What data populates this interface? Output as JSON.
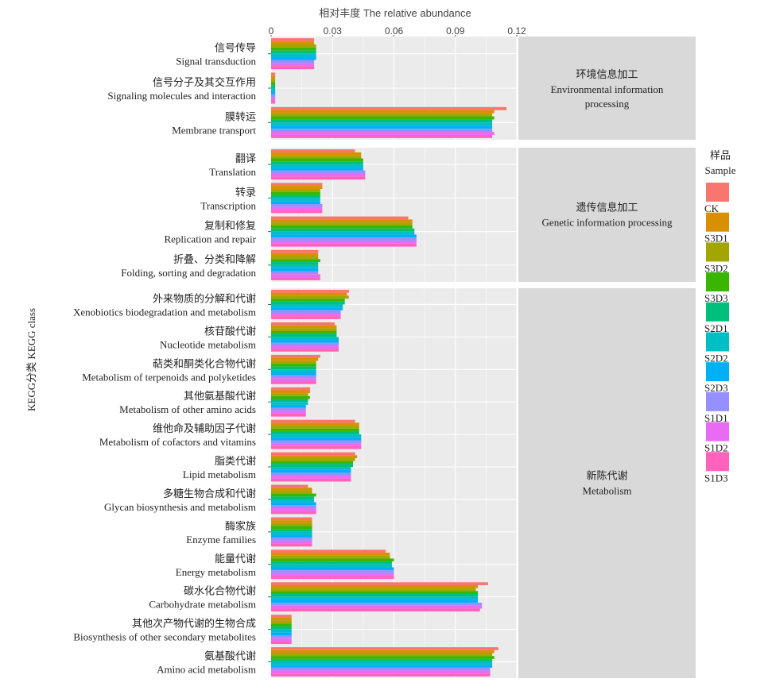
{
  "chart_data": {
    "type": "bar",
    "orientation": "horizontal",
    "title": "相对丰度 The relative abundance",
    "ylabel": "KEGG分类 KEGG class",
    "xlim": [
      0,
      0.12
    ],
    "xticks": [
      "0",
      "0.03",
      "0.06",
      "0.09",
      "0.12"
    ],
    "grid": true,
    "legend": {
      "title_cn": "样品",
      "title_en": "Sample",
      "position": "right"
    },
    "samples": [
      "CK",
      "S3D1",
      "S3D2",
      "S3D3",
      "S2D1",
      "S2D2",
      "S2D3",
      "S1D1",
      "S1D2",
      "S1D3"
    ],
    "colors": [
      "#F8766D",
      "#D89000",
      "#A3A500",
      "#39B600",
      "#00BF7D",
      "#00BFC4",
      "#00B0F6",
      "#9590FF",
      "#E76BF3",
      "#FF62BC"
    ],
    "panels": [
      {
        "label_cn": "环境信息加工",
        "label_en": "Environmental information processing",
        "categories": [
          {
            "cn": "信号传导",
            "en": "Signal transduction",
            "values": [
              0.021,
              0.021,
              0.022,
              0.022,
              0.022,
              0.022,
              0.022,
              0.021,
              0.021,
              0.021
            ]
          },
          {
            "cn": "信号分子及其交互作用",
            "en": "Signaling molecules and interaction",
            "values": [
              0.002,
              0.002,
              0.002,
              0.002,
              0.002,
              0.002,
              0.002,
              0.002,
              0.002,
              0.002
            ]
          },
          {
            "cn": "膜转运",
            "en": "Membrane transport",
            "values": [
              0.115,
              0.109,
              0.108,
              0.109,
              0.108,
              0.108,
              0.108,
              0.108,
              0.109,
              0.108
            ]
          }
        ]
      },
      {
        "label_cn": "遗传信息加工",
        "label_en": "Genetic information processing",
        "categories": [
          {
            "cn": "翻译",
            "en": "Translation",
            "values": [
              0.041,
              0.044,
              0.044,
              0.045,
              0.045,
              0.045,
              0.045,
              0.046,
              0.046,
              0.046
            ]
          },
          {
            "cn": "转录",
            "en": "Transcription",
            "values": [
              0.025,
              0.025,
              0.024,
              0.024,
              0.024,
              0.024,
              0.024,
              0.025,
              0.025,
              0.025
            ]
          },
          {
            "cn": "复制和修复",
            "en": "Replication and repair",
            "values": [
              0.067,
              0.069,
              0.069,
              0.069,
              0.07,
              0.07,
              0.071,
              0.071,
              0.071,
              0.071
            ]
          },
          {
            "cn": "折叠、分类和降解",
            "en": "Folding, sorting and degradation",
            "values": [
              0.023,
              0.023,
              0.023,
              0.024,
              0.023,
              0.023,
              0.023,
              0.023,
              0.024,
              0.024
            ]
          }
        ]
      },
      {
        "label_cn": "新陈代谢",
        "label_en": "Metabolism",
        "categories": [
          {
            "cn": "外来物质的分解和代谢",
            "en": "Xenobiotics biodegradation and metabolism",
            "values": [
              0.038,
              0.037,
              0.038,
              0.036,
              0.036,
              0.035,
              0.035,
              0.034,
              0.034,
              0.034
            ]
          },
          {
            "cn": "核苷酸代谢",
            "en": "Nucleotide metabolism",
            "values": [
              0.031,
              0.032,
              0.032,
              0.032,
              0.032,
              0.033,
              0.033,
              0.033,
              0.033,
              0.033
            ]
          },
          {
            "cn": "萜类和酮类化合物代谢",
            "en": "Metabolism of terpenoids and polyketides",
            "values": [
              0.024,
              0.023,
              0.022,
              0.022,
              0.022,
              0.022,
              0.022,
              0.022,
              0.022,
              0.022
            ]
          },
          {
            "cn": "其他氨基酸代谢",
            "en": "Metabolism of other amino acids",
            "values": [
              0.019,
              0.019,
              0.018,
              0.019,
              0.018,
              0.018,
              0.017,
              0.017,
              0.017,
              0.017
            ]
          },
          {
            "cn": "维他命及辅助因子代谢",
            "en": "Metabolism of cofactors and vitamins",
            "values": [
              0.041,
              0.043,
              0.043,
              0.043,
              0.043,
              0.044,
              0.044,
              0.044,
              0.044,
              0.044
            ]
          },
          {
            "cn": "脂类代谢",
            "en": "Lipid metabolism",
            "values": [
              0.041,
              0.042,
              0.041,
              0.04,
              0.04,
              0.039,
              0.039,
              0.039,
              0.039,
              0.039
            ]
          },
          {
            "cn": "多糖生物合成和代谢",
            "en": "Glycan biosynthesis and metabolism",
            "values": [
              0.018,
              0.02,
              0.02,
              0.022,
              0.021,
              0.021,
              0.022,
              0.022,
              0.022,
              0.022
            ]
          },
          {
            "cn": "酶家族",
            "en": "Enzyme families",
            "values": [
              0.02,
              0.02,
              0.02,
              0.02,
              0.02,
              0.02,
              0.02,
              0.02,
              0.02,
              0.02
            ]
          },
          {
            "cn": "能量代谢",
            "en": "Energy metabolism",
            "values": [
              0.056,
              0.058,
              0.058,
              0.06,
              0.059,
              0.059,
              0.06,
              0.06,
              0.06,
              0.06
            ]
          },
          {
            "cn": "碳水化合物代谢",
            "en": "Carbohydrate metabolism",
            "values": [
              0.106,
              0.101,
              0.1,
              0.101,
              0.101,
              0.101,
              0.101,
              0.103,
              0.103,
              0.102
            ]
          },
          {
            "cn": "其他次产物代谢的生物合成",
            "en": "Biosynthesis of other secondary metabolites",
            "values": [
              0.01,
              0.01,
              0.01,
              0.01,
              0.01,
              0.01,
              0.01,
              0.01,
              0.01,
              0.01
            ]
          },
          {
            "cn": "氨基酸代谢",
            "en": "Amino acid metabolism",
            "values": [
              0.111,
              0.109,
              0.108,
              0.109,
              0.108,
              0.108,
              0.108,
              0.107,
              0.107,
              0.107
            ]
          }
        ]
      }
    ]
  }
}
